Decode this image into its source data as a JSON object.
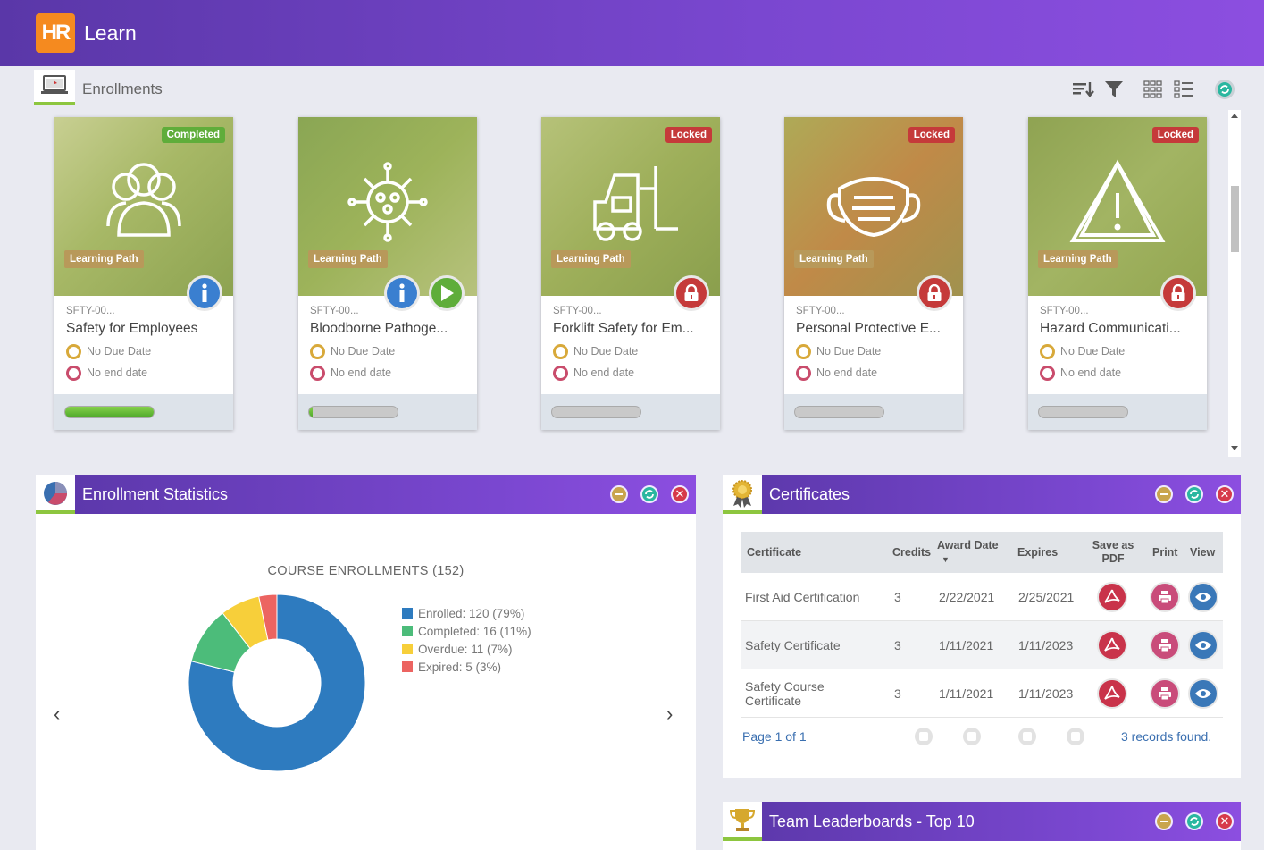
{
  "app": {
    "logo_text": "HR",
    "title": "Learn"
  },
  "enrollments": {
    "title": "Enrollments",
    "toolbar_icons": [
      "sort-icon",
      "filter-icon",
      "grid-view-icon",
      "list-view-icon",
      "refresh-icon"
    ],
    "cards": [
      {
        "status": "Completed",
        "status_type": "completed",
        "type_label": "Learning Path",
        "icon": "people-icon",
        "code": "SFTY-00...",
        "name": "Safety for Employees",
        "due": "No Due Date",
        "end": "No end date",
        "progress": 1.0,
        "actions": [
          "info"
        ]
      },
      {
        "status": "",
        "status_type": "",
        "type_label": "Learning Path",
        "icon": "virus-icon",
        "code": "SFTY-00...",
        "name": "Bloodborne Pathoge...",
        "due": "No Due Date",
        "end": "No end date",
        "progress": 0.04,
        "actions": [
          "info",
          "play"
        ]
      },
      {
        "status": "Locked",
        "status_type": "locked",
        "type_label": "Learning Path",
        "icon": "forklift-icon",
        "code": "SFTY-00...",
        "name": "Forklift Safety for Em...",
        "due": "No Due Date",
        "end": "No end date",
        "progress": 0,
        "actions": [
          "lock"
        ]
      },
      {
        "status": "Locked",
        "status_type": "locked",
        "type_label": "Learning Path",
        "icon": "mask-icon",
        "code": "SFTY-00...",
        "name": "Personal Protective E...",
        "due": "No Due Date",
        "end": "No end date",
        "progress": 0,
        "actions": [
          "lock"
        ]
      },
      {
        "status": "Locked",
        "status_type": "locked",
        "type_label": "Learning Path",
        "icon": "warning-icon",
        "code": "SFTY-00...",
        "name": "Hazard Communicati...",
        "due": "No Due Date",
        "end": "No end date",
        "progress": 0,
        "actions": [
          "lock"
        ]
      }
    ]
  },
  "stats_panel": {
    "title": "Enrollment Statistics",
    "chart_title": "COURSE ENROLLMENTS (152)"
  },
  "chart_data": {
    "type": "pie",
    "title": "COURSE ENROLLMENTS (152)",
    "categories": [
      "Enrolled",
      "Completed",
      "Overdue",
      "Expired"
    ],
    "values": [
      120,
      16,
      11,
      5
    ],
    "legend_labels": [
      "Enrolled: 120 (79%)",
      "Completed: 16 (11%)",
      "Overdue: 11 (7%)",
      "Expired: 5 (3%)"
    ],
    "colors": [
      "#2e7bbf",
      "#4cbc7a",
      "#f7cf3a",
      "#ec6461"
    ],
    "legend": "right"
  },
  "certificates": {
    "title": "Certificates",
    "headers": {
      "certificate": "Certificate",
      "credits": "Credits",
      "award_date": "Award Date",
      "expires": "Expires",
      "save_pdf": "Save as PDF",
      "print": "Print",
      "view": "View"
    },
    "rows": [
      {
        "name": "First Aid Certification",
        "credits": "3",
        "award": "2/22/2021",
        "expires": "2/25/2021"
      },
      {
        "name": "Safety Certificate",
        "credits": "3",
        "award": "1/11/2021",
        "expires": "1/11/2023"
      },
      {
        "name": "Safety Course Certificate",
        "credits": "3",
        "award": "1/11/2021",
        "expires": "1/11/2023"
      }
    ],
    "pager": {
      "page": "Page 1 of 1",
      "records": "3 records found."
    }
  },
  "leaderboard": {
    "title": "Team Leaderboards - Top 10"
  }
}
